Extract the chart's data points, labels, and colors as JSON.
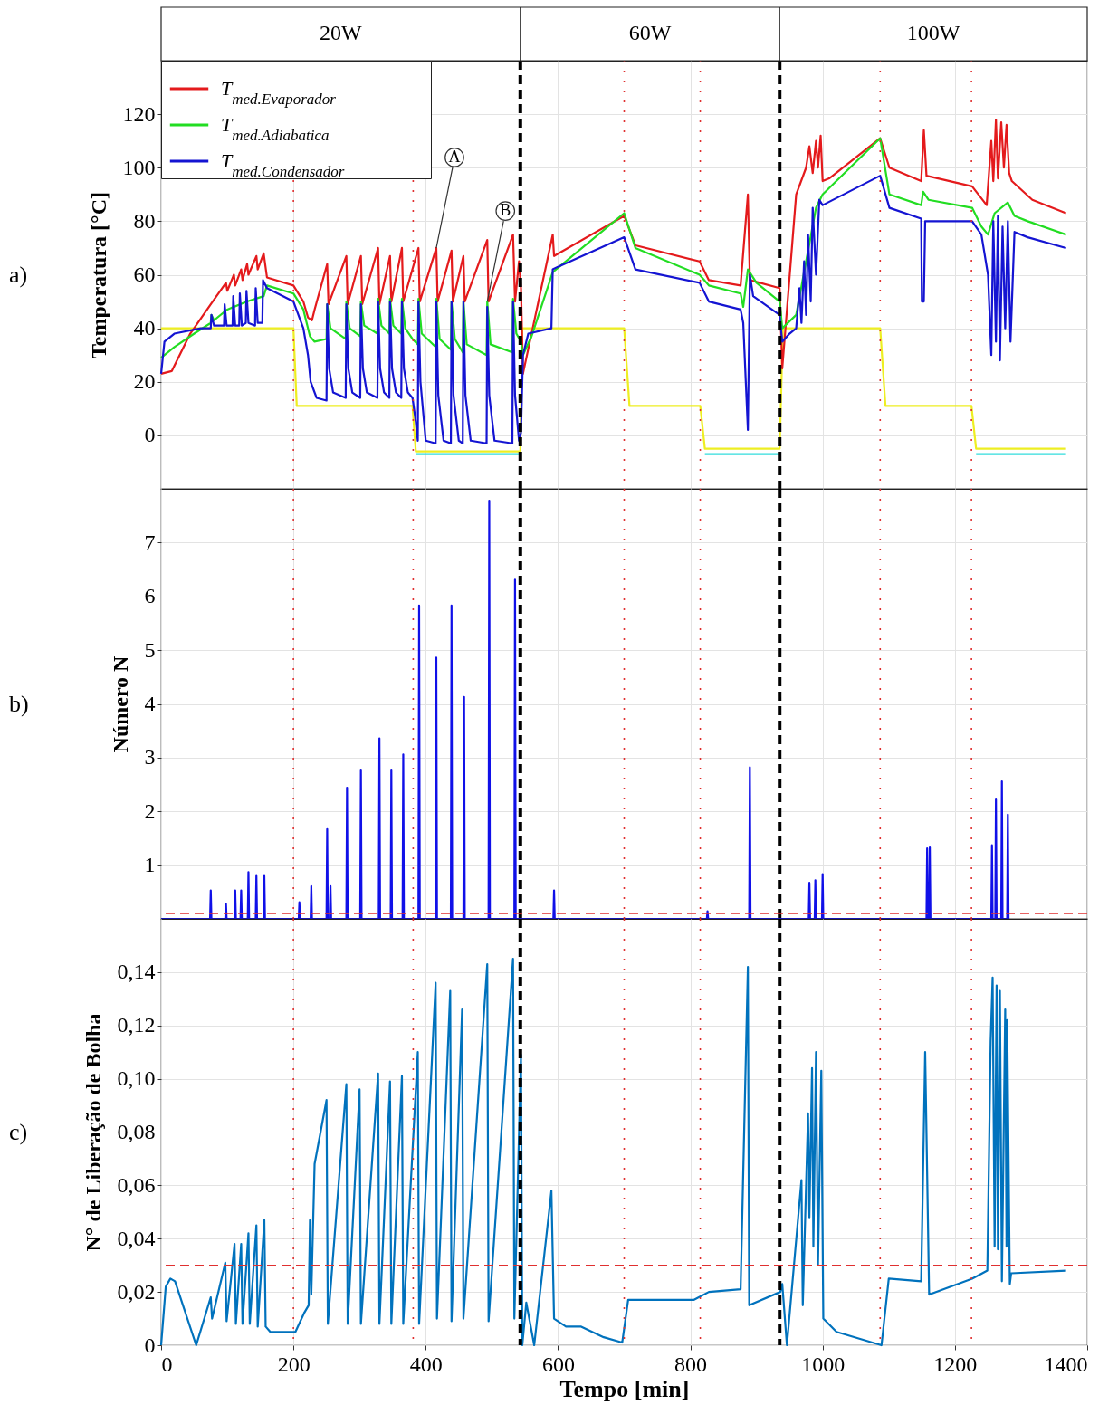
{
  "chart_data": [
    {
      "type": "line",
      "ylabel": "Temperatura [°C]",
      "xlim": [
        0,
        1400
      ],
      "ylim": [
        -20,
        140
      ],
      "xticks": [
        0,
        200,
        400,
        600,
        800,
        1000,
        1200,
        1400
      ],
      "yticks": [
        0,
        20,
        40,
        60,
        80,
        100,
        120
      ],
      "grid": true,
      "legend": "top left",
      "tick_labels": "y",
      "annotations": [
        "a)",
        "20W",
        "60W",
        "100W",
        {
          "text": "A",
          "x": 416,
          "y": 70
        },
        {
          "text": "B",
          "x": 493,
          "y": 50
        }
      ],
      "ref_lines": [
        {
          "axis": "x",
          "value": 543,
          "color": "#000000",
          "line_style": "dashed"
        },
        {
          "axis": "x",
          "value": 935,
          "color": "#000000",
          "line_style": "dashed"
        },
        {
          "axis": "x",
          "value": 200,
          "color": "#e03030",
          "line_style": "dotted"
        },
        {
          "axis": "x",
          "value": 381,
          "color": "#e03030",
          "line_style": "dotted"
        },
        {
          "axis": "x",
          "value": 700,
          "color": "#e03030",
          "line_style": "dotted"
        },
        {
          "axis": "x",
          "value": 815,
          "color": "#e03030",
          "line_style": "dotted"
        },
        {
          "axis": "x",
          "value": 1087,
          "color": "#e03030",
          "line_style": "dotted"
        },
        {
          "axis": "x",
          "value": 1225,
          "color": "#e03030",
          "line_style": "dotted"
        }
      ],
      "series": [
        {
          "color": "#33dddd",
          "x": [
            385,
            543,
            700,
            822,
            935,
            1100,
            1232,
            1368
          ],
          "values": [
            -7,
            -7,
            null,
            -7,
            -7,
            null,
            -7,
            -7
          ]
        },
        {
          "color": "#eeee22",
          "x": [
            0,
            200,
            205,
            380,
            385,
            543,
            546,
            700,
            708,
            815,
            822,
            935,
            940,
            1087,
            1095,
            1225,
            1232,
            1368
          ],
          "values": [
            40,
            40,
            11,
            11,
            -6,
            -6,
            40,
            40,
            11,
            11,
            -5,
            -5,
            40,
            40,
            11,
            11,
            -5,
            -5
          ]
        },
        {
          "name": "T$_{med.Evaporador}$",
          "color": "#e41a1c",
          "x": [
            0,
            16,
            44,
            75,
            98,
            100,
            110,
            112,
            121,
            123,
            130,
            132,
            144,
            146,
            155,
            160,
            200,
            215,
            222,
            228,
            232,
            251,
            253,
            280,
            282,
            302,
            304,
            328,
            330,
            346,
            348,
            364,
            366,
            389,
            391,
            416,
            418,
            439,
            441,
            457,
            459,
            493,
            495,
            532,
            535,
            541,
            544,
            547,
            592,
            594,
            700,
            717,
            814,
            828,
            876,
            887,
            890,
            935,
            939,
            960,
            975,
            980,
            985,
            990,
            993,
            997,
            1000,
            1010,
            1087,
            1101,
            1149,
            1153,
            1157,
            1226,
            1248,
            1255,
            1258,
            1262,
            1265,
            1270,
            1274,
            1278,
            1282,
            1286,
            1317,
            1368
          ],
          "values": [
            23,
            24,
            38,
            49,
            57,
            54,
            60,
            56,
            62,
            58,
            64,
            60,
            67,
            62,
            68,
            59,
            56,
            50,
            44,
            43,
            47,
            64,
            49,
            67,
            49,
            67,
            49,
            70,
            49,
            67,
            50,
            70,
            50,
            70,
            50,
            70,
            50,
            69,
            50,
            67,
            50,
            73,
            50,
            75,
            50,
            65,
            55,
            23,
            75,
            67,
            82,
            71,
            65,
            58,
            56,
            90,
            58,
            55,
            25,
            90,
            100,
            108,
            98,
            110,
            100,
            112,
            95,
            96,
            111,
            100,
            95,
            114,
            97,
            93,
            86,
            110,
            95,
            118,
            96,
            117,
            100,
            116,
            98,
            95,
            88,
            83
          ]
        },
        {
          "name": "T$_{med.Adiabatica}$",
          "color": "#22dd22",
          "x": [
            0,
            20,
            50,
            75,
            76,
            80,
            100,
            130,
            155,
            160,
            200,
            215,
            225,
            232,
            250,
            251,
            256,
            279,
            280,
            285,
            301,
            302,
            307,
            327,
            328,
            333,
            345,
            346,
            351,
            363,
            364,
            369,
            380,
            388,
            389,
            394,
            415,
            416,
            421,
            438,
            439,
            444,
            456,
            457,
            462,
            492,
            493,
            498,
            531,
            532,
            537,
            544,
            547,
            560,
            592,
            700,
            717,
            814,
            828,
            876,
            880,
            887,
            900,
            935,
            939,
            960,
            975,
            990,
            1000,
            1087,
            1101,
            1149,
            1152,
            1160,
            1226,
            1240,
            1250,
            1260,
            1280,
            1290,
            1310,
            1368
          ],
          "values": [
            29,
            33,
            38,
            42,
            45,
            43,
            47,
            50,
            52,
            56,
            53,
            47,
            37,
            35,
            36,
            49,
            40,
            36,
            50,
            40,
            37,
            50,
            41,
            38,
            51,
            41,
            38,
            51,
            41,
            38,
            51,
            40,
            36,
            34,
            51,
            38,
            33,
            51,
            36,
            32,
            50,
            36,
            31,
            50,
            34,
            30,
            50,
            34,
            31,
            51,
            38,
            35,
            30,
            37,
            61,
            83,
            70,
            60,
            56,
            53,
            48,
            62,
            57,
            50,
            40,
            45,
            65,
            85,
            90,
            111,
            90,
            86,
            91,
            88,
            85,
            78,
            75,
            83,
            87,
            82,
            80,
            75
          ]
        },
        {
          "name": "T$_{med.Condensador}$",
          "color": "#1414d2",
          "x": [
            0,
            5,
            20,
            60,
            75,
            76,
            80,
            95,
            96,
            99,
            108,
            109,
            112,
            118,
            119,
            122,
            128,
            129,
            132,
            142,
            143,
            146,
            153,
            154,
            160,
            200,
            215,
            222,
            226,
            235,
            250,
            251,
            254,
            260,
            279,
            280,
            283,
            289,
            301,
            302,
            305,
            311,
            327,
            328,
            331,
            337,
            345,
            346,
            349,
            355,
            363,
            364,
            367,
            373,
            380,
            385,
            388,
            389,
            392,
            400,
            415,
            416,
            419,
            427,
            438,
            439,
            442,
            450,
            456,
            457,
            460,
            468,
            492,
            493,
            496,
            504,
            531,
            532,
            535,
            541,
            544,
            547,
            555,
            590,
            592,
            600,
            700,
            717,
            814,
            828,
            876,
            880,
            887,
            890,
            895,
            935,
            939,
            950,
            960,
            965,
            968,
            972,
            975,
            978,
            982,
            985,
            990,
            995,
            1000,
            1087,
            1101,
            1149,
            1150,
            1153,
            1155,
            1226,
            1240,
            1250,
            1255,
            1258,
            1262,
            1265,
            1268,
            1272,
            1276,
            1280,
            1284,
            1290,
            1310,
            1368
          ],
          "values": [
            23,
            35,
            38,
            40,
            40,
            45,
            41,
            41,
            49,
            41,
            41,
            52,
            41,
            41,
            53,
            41,
            42,
            54,
            42,
            41,
            55,
            42,
            42,
            58,
            55,
            50,
            40,
            30,
            20,
            14,
            13,
            49,
            25,
            16,
            14,
            49,
            25,
            16,
            14,
            49,
            25,
            16,
            14,
            50,
            25,
            16,
            14,
            50,
            25,
            16,
            14,
            50,
            25,
            16,
            14,
            5,
            -2,
            50,
            20,
            -2,
            -3,
            50,
            15,
            -2,
            -3,
            50,
            15,
            -2,
            -3,
            50,
            15,
            -2,
            -3,
            48,
            15,
            -2,
            -3,
            50,
            15,
            -2,
            1,
            30,
            38,
            40,
            62,
            63,
            74,
            62,
            57,
            50,
            47,
            42,
            2,
            60,
            52,
            45,
            35,
            38,
            40,
            55,
            42,
            65,
            45,
            75,
            50,
            85,
            60,
            88,
            86,
            97,
            85,
            81,
            50,
            50,
            80,
            80,
            75,
            60,
            30,
            80,
            35,
            82,
            28,
            78,
            40,
            80,
            35,
            76,
            74,
            70
          ]
        }
      ]
    },
    {
      "type": "line",
      "ylabel": "Número N",
      "xlim": [
        0,
        1400
      ],
      "ylim": [
        0,
        8
      ],
      "xticks": [
        0,
        200,
        400,
        600,
        800,
        1000,
        1200,
        1400
      ],
      "yticks": [
        1,
        2,
        3,
        4,
        5,
        6,
        7
      ],
      "grid": true,
      "tick_labels": "y",
      "annotations": [
        "b)"
      ],
      "ref_lines": [
        {
          "axis": "x",
          "value": 543,
          "color": "#000000",
          "line_style": "dashed"
        },
        {
          "axis": "x",
          "value": 935,
          "color": "#000000",
          "line_style": "dashed"
        },
        {
          "axis": "x",
          "value": 200,
          "color": "#e03030",
          "line_style": "dotted"
        },
        {
          "axis": "x",
          "value": 381,
          "color": "#e03030",
          "line_style": "dotted"
        },
        {
          "axis": "x",
          "value": 700,
          "color": "#e03030",
          "line_style": "dotted"
        },
        {
          "axis": "x",
          "value": 815,
          "color": "#e03030",
          "line_style": "dotted"
        },
        {
          "axis": "x",
          "value": 1087,
          "color": "#e03030",
          "line_style": "dotted"
        },
        {
          "axis": "x",
          "value": 1225,
          "color": "#e03030",
          "line_style": "dotted"
        },
        {
          "axis": "y",
          "value": 0.1,
          "color": "#e03030",
          "line_style": "dashed"
        }
      ],
      "series": [
        {
          "color": "#1010e8",
          "x": [
            0,
            74,
            75,
            76,
            97,
            98,
            99,
            111,
            112,
            113,
            120,
            121,
            122,
            131,
            132,
            133,
            143,
            144,
            145,
            155,
            156,
            157,
            208,
            209,
            210,
            226,
            227,
            228,
            250,
            251,
            252,
            255,
            256,
            257,
            280,
            281,
            282,
            301,
            302,
            303,
            329,
            330,
            331,
            347,
            348,
            349,
            365,
            366,
            367,
            389,
            390,
            391,
            415,
            416,
            417,
            438,
            439,
            440,
            457,
            458,
            459,
            495,
            496,
            497,
            534,
            535,
            536,
            593,
            594,
            595,
            825,
            826,
            827,
            889,
            890,
            891,
            979,
            980,
            981,
            988,
            989,
            990,
            999,
            1000,
            1001,
            1157,
            1158,
            1159,
            1161,
            1162,
            1163,
            1255,
            1256,
            1257,
            1261,
            1262,
            1263,
            1270,
            1271,
            1272,
            1279,
            1280,
            1281
          ],
          "values": [
            0,
            0,
            0.53,
            0,
            0,
            0.28,
            0,
            0,
            0.53,
            0,
            0,
            0.53,
            0,
            0,
            0.87,
            0,
            0,
            0.8,
            0,
            0,
            0.8,
            0,
            0,
            0.31,
            0,
            0,
            0.61,
            0,
            0,
            1.67,
            0,
            0,
            0.61,
            0,
            0,
            2.44,
            0,
            0,
            2.76,
            0,
            0,
            3.36,
            0,
            0,
            2.76,
            0,
            0,
            3.06,
            0,
            0,
            5.83,
            0,
            0,
            4.86,
            0,
            0,
            5.83,
            0,
            0,
            4.13,
            0,
            0,
            7.78,
            0,
            0,
            6.31,
            0,
            0,
            0.53,
            0,
            0,
            0.14,
            0,
            0,
            2.82,
            0,
            0,
            0.67,
            0,
            0,
            0.72,
            0,
            0,
            0.83,
            0,
            0,
            1.31,
            0,
            0,
            1.33,
            0,
            0,
            1.37,
            0,
            0,
            2.22,
            0,
            0,
            2.56,
            0,
            0,
            1.94,
            0
          ]
        }
      ]
    },
    {
      "type": "line",
      "xlabel": "Tempo [min]",
      "ylabel": "N° de Liberação de Bolha",
      "xlim": [
        0,
        1400
      ],
      "ylim": [
        0,
        0.16
      ],
      "xticks": [
        0,
        200,
        400,
        600,
        800,
        1000,
        1200,
        1400
      ],
      "yticks": [
        0,
        {
          "value": 0.02,
          "label": "0,02"
        },
        {
          "value": 0.04,
          "label": "0,04"
        },
        {
          "value": 0.06,
          "label": "0,06"
        },
        {
          "value": 0.08,
          "label": "0,08"
        },
        {
          "value": 0.1,
          "label": "0,10"
        },
        {
          "value": 0.12,
          "label": "0,12"
        },
        {
          "value": 0.14,
          "label": "0,14"
        }
      ],
      "grid": true,
      "annotations": [
        "c)"
      ],
      "ref_lines": [
        {
          "axis": "x",
          "value": 543,
          "color": "#000000",
          "line_style": "dashed"
        },
        {
          "axis": "x",
          "value": 935,
          "color": "#000000",
          "line_style": "dashed"
        },
        {
          "axis": "x",
          "value": 200,
          "color": "#e03030",
          "line_style": "dotted"
        },
        {
          "axis": "x",
          "value": 381,
          "color": "#e03030",
          "line_style": "dotted"
        },
        {
          "axis": "x",
          "value": 700,
          "color": "#e03030",
          "line_style": "dotted"
        },
        {
          "axis": "x",
          "value": 815,
          "color": "#e03030",
          "line_style": "dotted"
        },
        {
          "axis": "x",
          "value": 1087,
          "color": "#e03030",
          "line_style": "dotted"
        },
        {
          "axis": "x",
          "value": 1225,
          "color": "#e03030",
          "line_style": "dotted"
        },
        {
          "axis": "y",
          "value": 0.03,
          "color": "#e03030",
          "line_style": "dashed"
        }
      ],
      "series": [
        {
          "color": "#0072bd",
          "x": [
            0,
            7,
            14,
            21,
            53,
            75,
            77,
            97,
            99,
            111,
            113,
            121,
            123,
            132,
            134,
            144,
            146,
            156,
            158,
            165,
            180,
            203,
            216,
            223,
            225,
            227,
            232,
            250,
            252,
            280,
            282,
            300,
            302,
            328,
            330,
            346,
            348,
            364,
            366,
            388,
            390,
            415,
            417,
            437,
            439,
            455,
            457,
            493,
            495,
            532,
            534,
            544,
            546,
            552,
            564,
            590,
            594,
            612,
            635,
            669,
            697,
            706,
            805,
            828,
            876,
            887,
            889,
            936,
            939,
            946,
            968,
            970,
            978,
            980,
            984,
            986,
            990,
            993,
            998,
            1001,
            1021,
            1089,
            1100,
            1149,
            1155,
            1161,
            1226,
            1249,
            1254,
            1257,
            1260,
            1263,
            1265,
            1268,
            1271,
            1276,
            1278,
            1279,
            1283,
            1285,
            1368
          ],
          "values": [
            0,
            0.022,
            0.025,
            0.024,
            0,
            0.018,
            0.01,
            0.031,
            0.009,
            0.038,
            0.008,
            0.038,
            0.008,
            0.042,
            0.008,
            0.045,
            0.007,
            0.047,
            0.007,
            0.005,
            0.005,
            0.005,
            0.012,
            0.015,
            0.047,
            0.019,
            0.068,
            0.092,
            0.008,
            0.098,
            0.008,
            0.096,
            0.008,
            0.102,
            0.008,
            0.099,
            0.008,
            0.101,
            0.008,
            0.11,
            0.008,
            0.136,
            0.01,
            0.133,
            0.009,
            0.126,
            0.01,
            0.143,
            0.009,
            0.145,
            0.01,
            0.109,
            0,
            0.016,
            0,
            0.058,
            0.01,
            0.007,
            0.007,
            0.003,
            0.001,
            0.017,
            0.017,
            0.02,
            0.021,
            0.142,
            0.015,
            0.02,
            0.023,
            0,
            0.062,
            0.015,
            0.087,
            0.048,
            0.104,
            0.037,
            0.11,
            0.03,
            0.103,
            0.01,
            0.005,
            0,
            0.025,
            0.024,
            0.11,
            0.019,
            0.025,
            0.028,
            0.114,
            0.138,
            0.037,
            0.135,
            0.036,
            0.133,
            0.024,
            0.126,
            0.037,
            0.122,
            0.023,
            0.027,
            0.028
          ]
        }
      ]
    }
  ]
}
